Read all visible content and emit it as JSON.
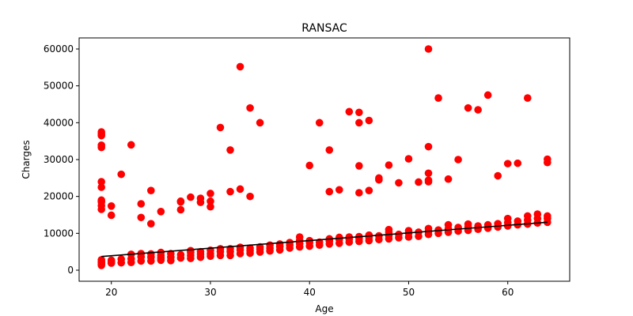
{
  "chart_data": {
    "type": "scatter",
    "title": "RANSAC",
    "xlabel": "Age",
    "ylabel": "Charges",
    "xlim": [
      16.75,
      66.25
    ],
    "ylim": [
      -3000,
      63000
    ],
    "xticks": [
      20,
      30,
      40,
      50,
      60
    ],
    "yticks": [
      0,
      10000,
      20000,
      30000,
      40000,
      50000,
      60000
    ],
    "xtick_labels": [
      "20",
      "30",
      "40",
      "50",
      "60"
    ],
    "ytick_labels": [
      "0",
      "10000",
      "20000",
      "30000",
      "40000",
      "50000",
      "60000"
    ],
    "grid": false,
    "colors": {
      "points": "#ff0000",
      "fit_line": "#000000",
      "axes": "#000000"
    },
    "series": [
      {
        "kind": "points",
        "x": [
          19,
          19,
          19,
          19,
          19,
          19,
          19,
          19,
          19,
          19,
          19,
          19,
          19,
          19,
          19,
          19,
          20,
          20,
          20,
          20,
          20,
          21,
          21,
          21,
          22,
          22,
          22,
          22,
          23,
          23,
          23,
          23,
          23,
          24,
          24,
          24,
          24,
          24,
          25,
          25,
          25,
          25,
          25,
          26,
          26,
          26,
          27,
          27,
          27,
          27,
          27,
          28,
          28,
          28,
          28,
          28,
          29,
          29,
          29,
          29,
          29,
          30,
          30,
          30,
          30,
          30,
          30,
          31,
          31,
          31,
          31,
          32,
          32,
          32,
          32,
          32,
          33,
          33,
          33,
          33,
          33,
          34,
          34,
          34,
          34,
          34,
          35,
          35,
          35,
          35,
          36,
          36,
          36,
          37,
          37,
          37,
          38,
          38,
          38,
          39,
          39,
          39,
          39,
          40,
          40,
          40,
          40,
          41,
          41,
          41,
          42,
          42,
          42,
          42,
          42,
          43,
          43,
          43,
          43,
          44,
          44,
          44,
          44,
          45,
          45,
          45,
          45,
          45,
          45,
          45,
          46,
          46,
          46,
          46,
          46,
          47,
          47,
          47,
          47,
          48,
          48,
          48,
          48,
          48,
          49,
          49,
          49,
          50,
          50,
          50,
          50,
          51,
          51,
          51,
          52,
          52,
          52,
          52,
          52,
          52,
          52,
          53,
          53,
          53,
          54,
          54,
          54,
          54,
          55,
          55,
          55,
          56,
          56,
          56,
          56,
          57,
          57,
          57,
          58,
          58,
          58,
          59,
          59,
          59,
          60,
          60,
          60,
          60,
          61,
          61,
          61,
          62,
          62,
          62,
          62,
          63,
          63,
          63,
          64,
          64,
          64,
          64,
          64
        ],
        "y": [
          1300,
          1700,
          2000,
          2400,
          2800,
          16500,
          17500,
          18500,
          19000,
          22500,
          24000,
          33300,
          33900,
          36500,
          37000,
          37500,
          1900,
          2300,
          2700,
          14900,
          17400,
          2000,
          3000,
          26000,
          2100,
          3100,
          4300,
          34000,
          2500,
          3600,
          4500,
          14300,
          18000,
          2500,
          3500,
          4400,
          12600,
          21600,
          2700,
          3300,
          4000,
          4800,
          15900,
          2600,
          3500,
          4500,
          3300,
          4200,
          16400,
          18500,
          18700,
          3200,
          4000,
          4800,
          5300,
          19800,
          3500,
          4300,
          5000,
          18400,
          19500,
          3800,
          4500,
          5400,
          17200,
          18700,
          20800,
          4000,
          5000,
          5800,
          38700,
          4000,
          5000,
          5800,
          21300,
          32600,
          4500,
          5500,
          6200,
          22000,
          55200,
          4600,
          5300,
          6000,
          20000,
          44000,
          4900,
          5700,
          6300,
          40000,
          5200,
          6000,
          6800,
          5500,
          6400,
          7100,
          6000,
          6800,
          7500,
          6300,
          7200,
          8000,
          9000,
          6500,
          7500,
          8000,
          28400,
          6800,
          7600,
          40000,
          7100,
          7900,
          8500,
          21300,
          32600,
          7300,
          8300,
          8900,
          21800,
          7600,
          8400,
          9000,
          43000,
          7800,
          8600,
          9100,
          21000,
          28300,
          40000,
          42800,
          8000,
          8800,
          9500,
          21600,
          40600,
          8300,
          9300,
          24500,
          25000,
          8500,
          9300,
          10300,
          11000,
          28500,
          8800,
          9700,
          23700,
          9000,
          10000,
          10700,
          30200,
          9200,
          10300,
          23900,
          9700,
          10500,
          11300,
          24000,
          24400,
          26300,
          33500,
          10000,
          10900,
          46700,
          10300,
          11200,
          12300,
          24700,
          10600,
          11600,
          30000,
          10800,
          11800,
          12500,
          44000,
          11100,
          12000,
          43500,
          11400,
          12300,
          47500,
          11700,
          12600,
          25600,
          12000,
          12900,
          14000,
          28900,
          12300,
          13300,
          29000,
          12500,
          13600,
          14700,
          46700,
          12800,
          14000,
          15200,
          13000,
          14000,
          14700,
          29200,
          30100
        ],
        "y_extra_outliers": {
          "x": [
            52
          ],
          "y": [
            60000
          ]
        }
      },
      {
        "kind": "line",
        "x": [
          19,
          64
        ],
        "y": [
          3700,
          13000
        ]
      }
    ]
  }
}
